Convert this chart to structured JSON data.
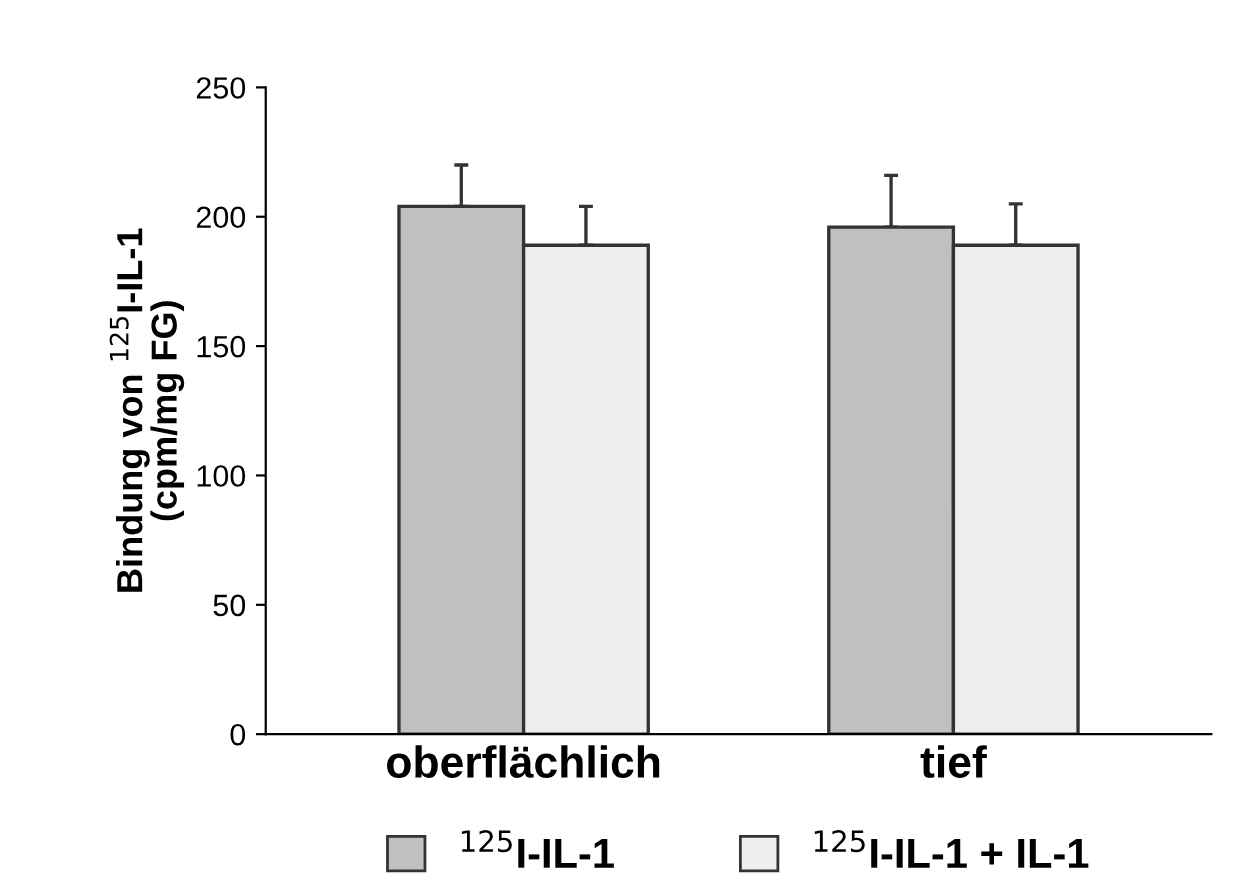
{
  "chart_data": {
    "type": "bar",
    "ylabel": "Bindung von $^{125}$I-IL-1\n(cpm/mg FG)",
    "categories": [
      "oberflächlich",
      "tief"
    ],
    "series": [
      {
        "name": "$^{125}$I-IL-1",
        "color": "#c0c0c0",
        "values": [
          204,
          196
        ],
        "errors": [
          16,
          20
        ]
      },
      {
        "name": "$^{125}$I-IL-1 + IL-1",
        "color": "#eeeeee",
        "values": [
          189,
          189
        ],
        "errors": [
          15,
          16
        ]
      }
    ],
    "ylim": [
      0,
      250
    ],
    "yticks": [
      0,
      50,
      100,
      150,
      200,
      250
    ],
    "grid": false,
    "legend": "bottom"
  }
}
